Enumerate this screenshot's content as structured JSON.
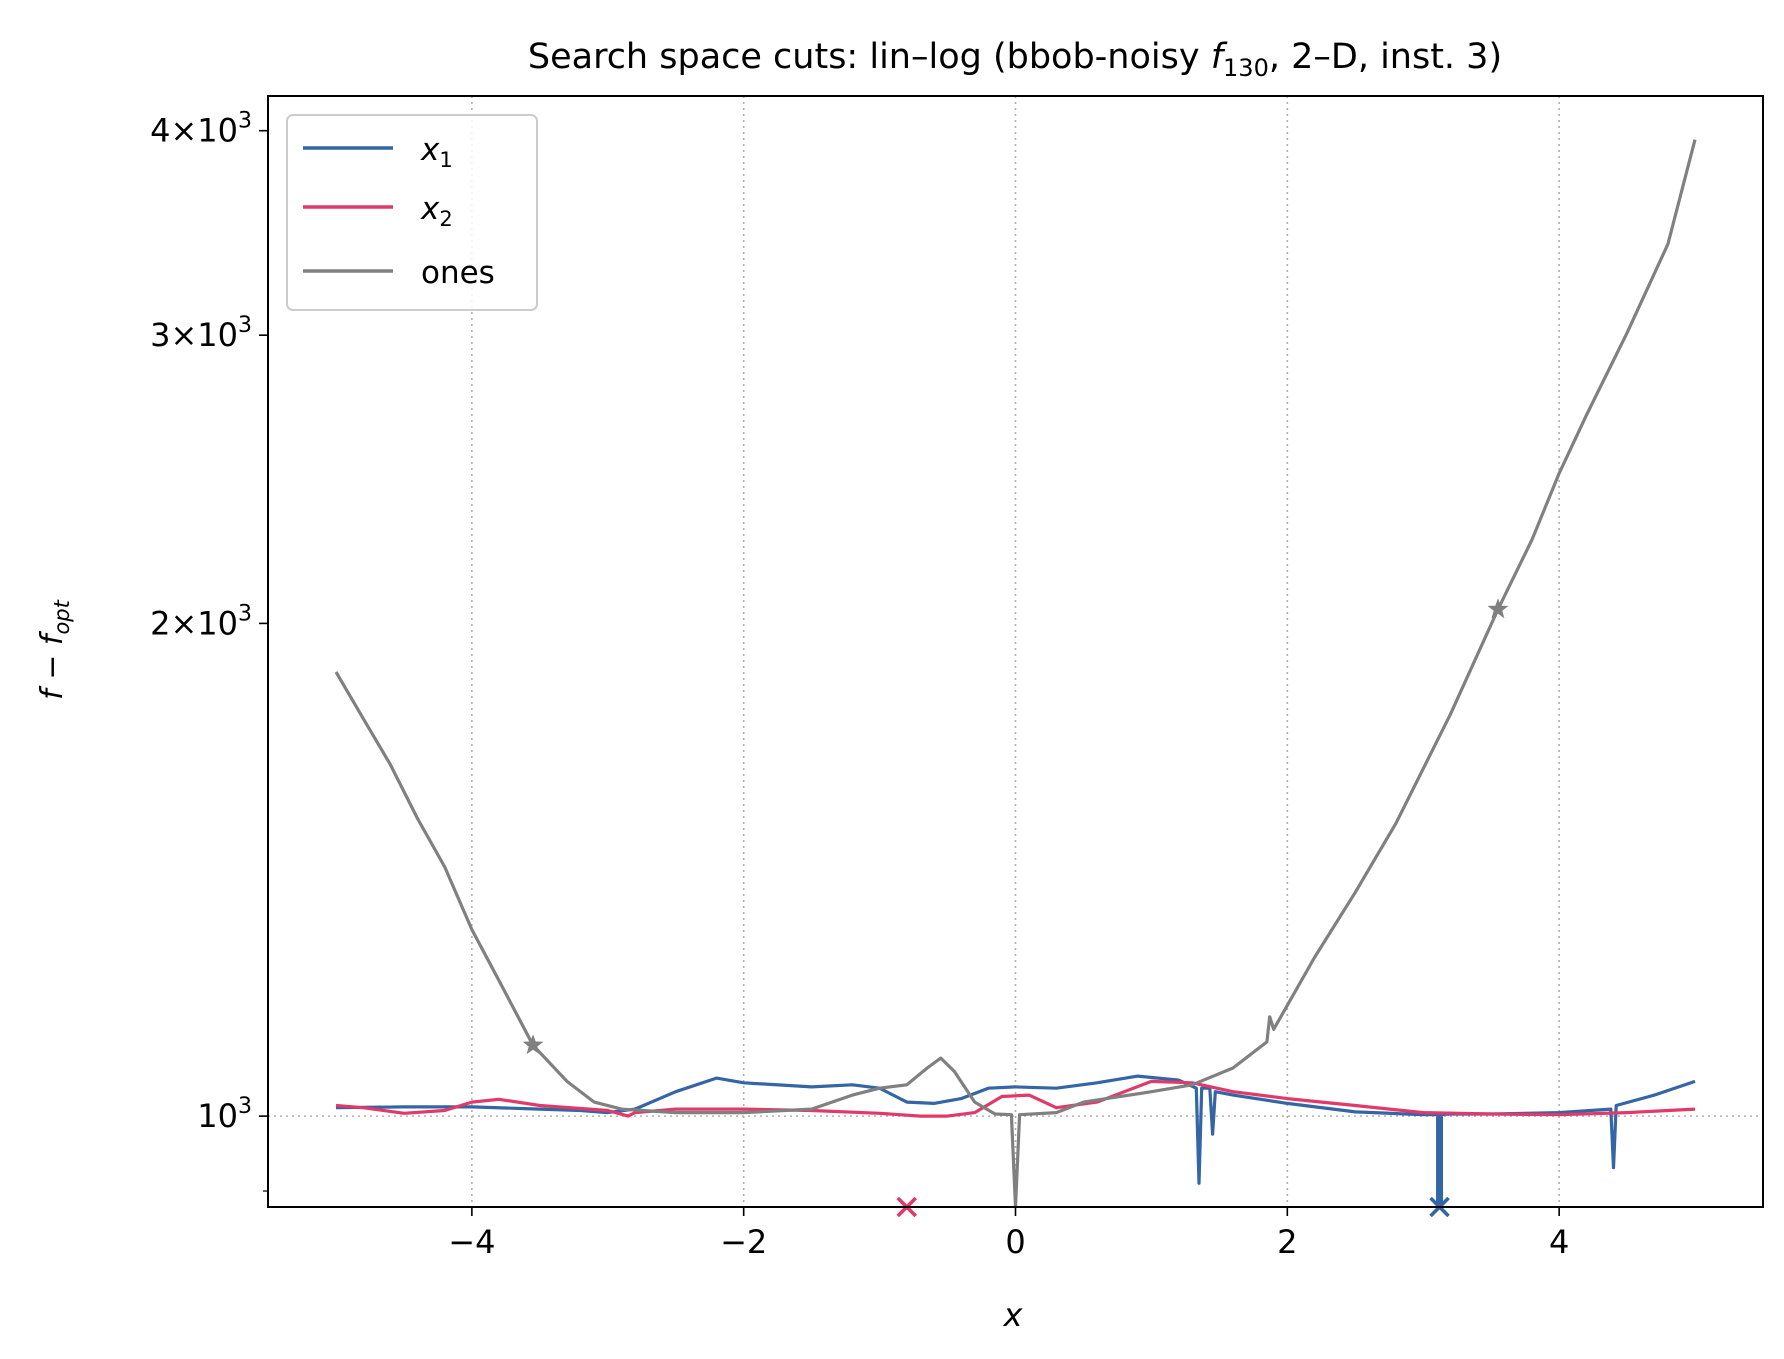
{
  "chart_data": {
    "type": "line",
    "title": "Search space cuts: lin–log (bbob-noisy f130, 2–D, inst. 3)",
    "title_parts": {
      "prefix": "Search space cuts: lin–log (bbob-noisy ",
      "func": "f",
      "func_sub": "130",
      "suffix": ", 2–D, inst. 3)"
    },
    "xlabel": "x",
    "ylabel": "f − f_opt",
    "ylabel_parts": {
      "main": "f − f",
      "sub": "opt"
    },
    "xlim": [
      -5.5,
      5.5
    ],
    "ylim": [
      880,
      4200
    ],
    "yscale": "log",
    "grid": "x-dotted",
    "reference_line_y": 1000,
    "legend_placement": "top-left",
    "x_ticks": [
      {
        "v": -4,
        "label": "−4"
      },
      {
        "v": -2,
        "label": "−2"
      },
      {
        "v": 0,
        "label": "0"
      },
      {
        "v": 2,
        "label": "2"
      },
      {
        "v": 4,
        "label": "4"
      }
    ],
    "y_ticks": [
      {
        "v": 1000,
        "mant": "",
        "exp": "3",
        "base": "10"
      },
      {
        "v": 2000,
        "mant": "2",
        "exp": "3",
        "base": "10"
      },
      {
        "v": 3000,
        "mant": "3",
        "exp": "3",
        "base": "10"
      },
      {
        "v": 4000,
        "mant": "4",
        "exp": "3",
        "base": "10"
      }
    ],
    "y_minor_ticks": [
      900
    ],
    "series": [
      {
        "name": "x1",
        "name_main": "x",
        "name_sub": "1",
        "color": "#3465a4",
        "points": [
          [
            -5,
            1012
          ],
          [
            -4.5,
            1013
          ],
          [
            -4,
            1013
          ],
          [
            -3.5,
            1010
          ],
          [
            -3.2,
            1008
          ],
          [
            -3,
            1005
          ],
          [
            -2.8,
            1010
          ],
          [
            -2.5,
            1035
          ],
          [
            -2.2,
            1055
          ],
          [
            -2,
            1048
          ],
          [
            -1.5,
            1042
          ],
          [
            -1.2,
            1045
          ],
          [
            -1,
            1040
          ],
          [
            -0.8,
            1020
          ],
          [
            -0.6,
            1018
          ],
          [
            -0.4,
            1025
          ],
          [
            -0.2,
            1040
          ],
          [
            0,
            1042
          ],
          [
            0.3,
            1040
          ],
          [
            0.6,
            1048
          ],
          [
            0.9,
            1058
          ],
          [
            1.2,
            1052
          ],
          [
            1.33,
            1040
          ],
          [
            1.35,
            910
          ],
          [
            1.37,
            1040
          ],
          [
            1.43,
            1040
          ],
          [
            1.45,
            975
          ],
          [
            1.47,
            1035
          ],
          [
            1.6,
            1030
          ],
          [
            2,
            1018
          ],
          [
            2.5,
            1006
          ],
          [
            3,
            1002
          ],
          [
            3.1,
            1002
          ],
          [
            3.2,
            1003
          ],
          [
            3.5,
            1003
          ],
          [
            4,
            1005
          ],
          [
            4.38,
            1010
          ],
          [
            4.4,
            930
          ],
          [
            4.42,
            1015
          ],
          [
            4.7,
            1030
          ],
          [
            5,
            1050
          ]
        ],
        "spikes": [
          [
            3.12,
            880
          ]
        ],
        "optimum_marker": {
          "x": 3.12,
          "y": 880,
          "symbol": "x"
        }
      },
      {
        "name": "x2",
        "name_main": "x",
        "name_sub": "2",
        "color": "#e0396a",
        "points": [
          [
            -5,
            1015
          ],
          [
            -4.8,
            1012
          ],
          [
            -4.5,
            1004
          ],
          [
            -4.2,
            1008
          ],
          [
            -4,
            1020
          ],
          [
            -3.8,
            1024
          ],
          [
            -3.5,
            1015
          ],
          [
            -3,
            1008
          ],
          [
            -2.85,
            1000
          ],
          [
            -2.8,
            1005
          ],
          [
            -2.5,
            1010
          ],
          [
            -2,
            1010
          ],
          [
            -1.5,
            1008
          ],
          [
            -1,
            1004
          ],
          [
            -0.7,
            1000
          ],
          [
            -0.5,
            1000
          ],
          [
            -0.3,
            1005
          ],
          [
            -0.1,
            1028
          ],
          [
            0.1,
            1030
          ],
          [
            0.3,
            1012
          ],
          [
            0.6,
            1020
          ],
          [
            1,
            1050
          ],
          [
            1.3,
            1048
          ],
          [
            1.6,
            1035
          ],
          [
            2,
            1025
          ],
          [
            2.5,
            1015
          ],
          [
            3,
            1005
          ],
          [
            3.5,
            1003
          ],
          [
            4,
            1002
          ],
          [
            4.5,
            1005
          ],
          [
            5,
            1010
          ]
        ],
        "optimum_marker": {
          "x": -0.8,
          "y": 880,
          "symbol": "x"
        }
      },
      {
        "name": "ones",
        "color": "#808080",
        "points": [
          [
            -5,
            1868
          ],
          [
            -4.8,
            1750
          ],
          [
            -4.6,
            1640
          ],
          [
            -4.4,
            1520
          ],
          [
            -4.2,
            1420
          ],
          [
            -4,
            1300
          ],
          [
            -3.8,
            1210
          ],
          [
            -3.55,
            1105
          ],
          [
            -3.3,
            1050
          ],
          [
            -3.1,
            1020
          ],
          [
            -2.9,
            1010
          ],
          [
            -2.5,
            1005
          ],
          [
            -2,
            1005
          ],
          [
            -1.5,
            1010
          ],
          [
            -1.2,
            1030
          ],
          [
            -1,
            1040
          ],
          [
            -0.8,
            1045
          ],
          [
            -0.65,
            1070
          ],
          [
            -0.55,
            1085
          ],
          [
            -0.45,
            1065
          ],
          [
            -0.3,
            1020
          ],
          [
            -0.15,
            1003
          ],
          [
            -0.03,
            1002
          ],
          [
            0,
            880
          ],
          [
            0.03,
            1002
          ],
          [
            0.3,
            1005
          ],
          [
            0.5,
            1020
          ],
          [
            1,
            1035
          ],
          [
            1.3,
            1045
          ],
          [
            1.6,
            1070
          ],
          [
            1.85,
            1110
          ],
          [
            1.87,
            1150
          ],
          [
            1.9,
            1130
          ],
          [
            2.2,
            1250
          ],
          [
            2.5,
            1370
          ],
          [
            2.8,
            1510
          ],
          [
            3.2,
            1760
          ],
          [
            3.55,
            2040
          ],
          [
            3.8,
            2250
          ],
          [
            4,
            2470
          ],
          [
            4.2,
            2680
          ],
          [
            4.5,
            3010
          ],
          [
            4.8,
            3410
          ],
          [
            5,
            3950
          ]
        ],
        "markers": [
          [
            -3.55,
            1105
          ],
          [
            3.55,
            2040
          ]
        ]
      }
    ]
  }
}
